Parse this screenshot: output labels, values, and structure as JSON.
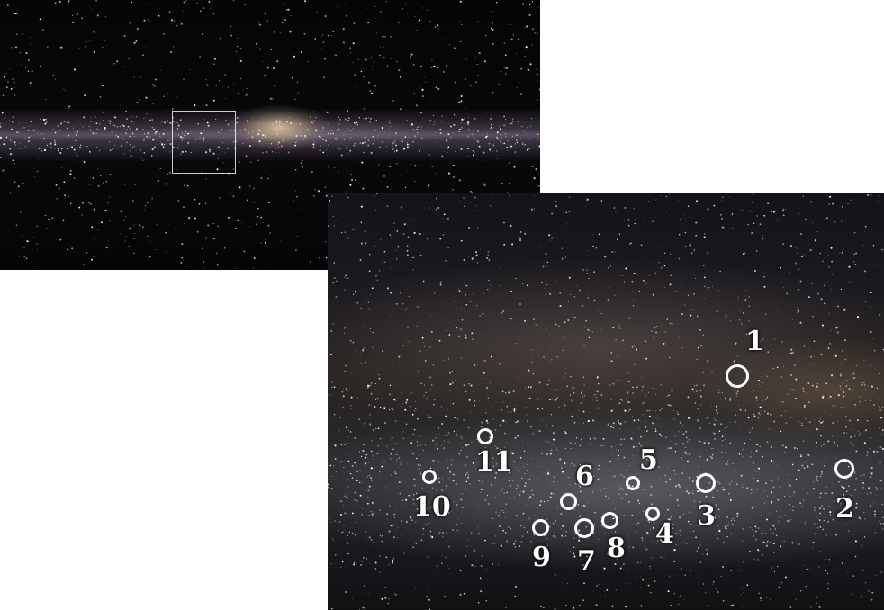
{
  "image": {
    "subject": "",
    "band_color": "#d8c6a8",
    "marker_color": "#ffffff"
  },
  "markers": [
    {
      "label": "1"
    },
    {
      "label": "2"
    },
    {
      "label": "3"
    },
    {
      "label": "4"
    },
    {
      "label": "5"
    },
    {
      "label": "6"
    },
    {
      "label": "7"
    },
    {
      "label": "8"
    },
    {
      "label": "9"
    },
    {
      "label": "10"
    },
    {
      "label": "11"
    }
  ]
}
